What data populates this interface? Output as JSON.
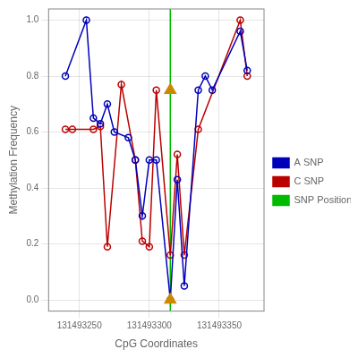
{
  "chart_data": {
    "type": "line",
    "xlabel": "CpG Coordinates",
    "ylabel": "Methylation Frequency",
    "xlim": [
      131493228,
      131493382
    ],
    "ylim": [
      -0.04,
      1.04
    ],
    "xticks": [
      131493250,
      131493300,
      131493350
    ],
    "yticks": [
      {
        "value": 0.0,
        "label": "0.0"
      },
      0.2,
      0.4,
      0.6,
      0.8,
      {
        "value": 1.0,
        "label": "1.0"
      }
    ],
    "grid": true,
    "legend": "right",
    "series": [
      {
        "name": "A SNP",
        "color": "#0000BB",
        "marker": "circle",
        "x": [
          131493240,
          131493255,
          131493260,
          131493265,
          131493270,
          131493275,
          131493285,
          131493290,
          131493295,
          131493300,
          131493305,
          131493315,
          131493320,
          131493325,
          131493335,
          131493340,
          131493345,
          131493365,
          131493370
        ],
        "values": [
          0.8,
          1.0,
          0.65,
          0.63,
          0.7,
          0.6,
          0.58,
          0.5,
          0.3,
          0.5,
          0.5,
          0.0,
          0.43,
          0.05,
          0.75,
          0.8,
          0.75,
          0.96,
          0.82
        ]
      },
      {
        "name": "C SNP",
        "color": "#BB0000",
        "marker": "circle",
        "x": [
          131493240,
          131493245,
          131493260,
          131493265,
          131493270,
          131493280,
          131493290,
          131493295,
          131493300,
          131493305,
          131493315,
          131493320,
          131493325,
          131493335,
          131493365,
          131493370
        ],
        "values": [
          0.61,
          0.61,
          0.61,
          0.62,
          0.19,
          0.77,
          0.5,
          0.21,
          0.19,
          0.75,
          0.16,
          0.52,
          0.16,
          0.61,
          1.0,
          0.8
        ]
      },
      {
        "name": "SNP Position",
        "type": "vline",
        "color": "#00BB00",
        "x": [
          131493315
        ]
      },
      {
        "type": "scatter",
        "marker": "triangle",
        "color": "#CC8800",
        "x": [
          131493315,
          131493315
        ],
        "values": [
          0.75,
          0.0
        ]
      }
    ]
  }
}
